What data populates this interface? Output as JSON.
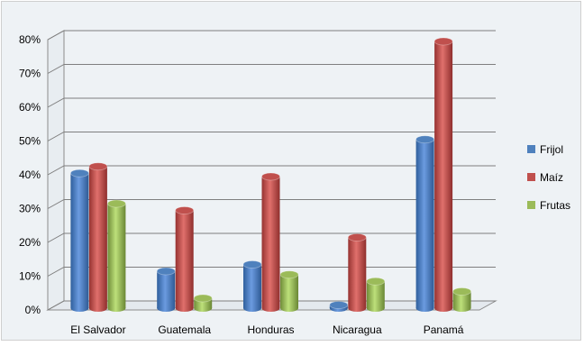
{
  "chart_data": {
    "type": "bar",
    "title": "",
    "xlabel": "",
    "ylabel": "",
    "ylim": [
      0,
      80
    ],
    "yticks": [
      "0%",
      "10%",
      "20%",
      "30%",
      "40%",
      "50%",
      "60%",
      "70%",
      "80%"
    ],
    "grid": true,
    "legend_position": "right",
    "categories": [
      "El Salvador",
      "Guatemala",
      "Honduras",
      "Nicaragua",
      "Panamá"
    ],
    "series": [
      {
        "name": "Frijol",
        "color": "#4f81bd",
        "values": [
          41,
          12,
          14,
          2,
          51
        ]
      },
      {
        "name": "Maíz",
        "color": "#c0504d",
        "values": [
          43,
          30,
          40,
          22,
          80
        ]
      },
      {
        "name": "Frutas",
        "color": "#9bbb59",
        "values": [
          32,
          4,
          11,
          9,
          6
        ]
      }
    ]
  }
}
